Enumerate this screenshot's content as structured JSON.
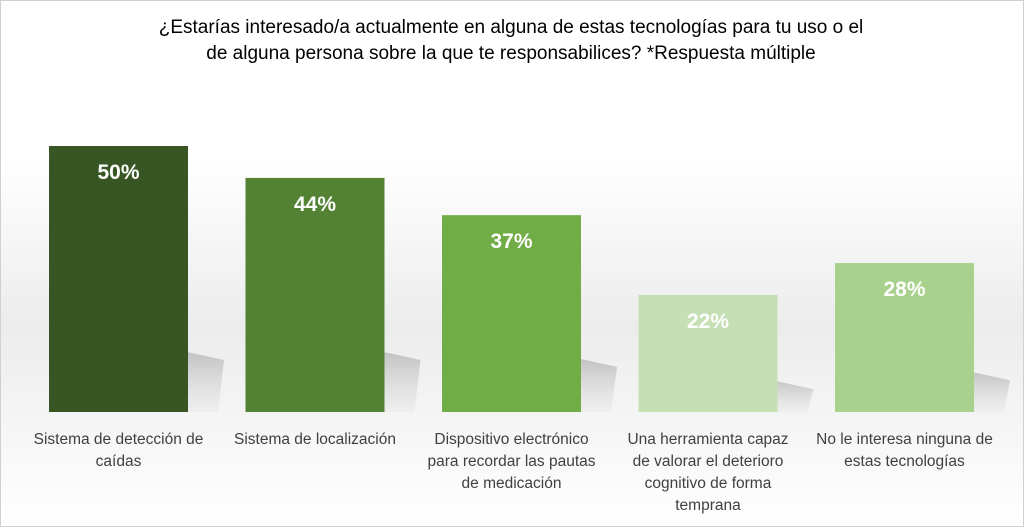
{
  "chart_data": {
    "type": "bar",
    "title_lines": [
      "¿Estarías interesado/a actualmente en alguna de estas tecnologías para tu uso o el",
      "de alguna persona sobre la que te responsabilices? *Respuesta múltiple"
    ],
    "categories": [
      [
        "Sistema de detección de",
        "caídas"
      ],
      [
        "Sistema de localización"
      ],
      [
        "Dispositivo electrónico",
        "para recordar las pautas",
        "de medicación"
      ],
      [
        "Una herramienta capaz",
        "de valorar el deterioro",
        "cognitivo de forma",
        "temprana"
      ],
      [
        "No le interesa ninguna de",
        "estas tecnologías"
      ]
    ],
    "values": [
      50,
      44,
      37,
      22,
      28
    ],
    "data_labels": [
      "50%",
      "44%",
      "37%",
      "22%",
      "28%"
    ],
    "unit": "%",
    "ylim": [
      0,
      50
    ],
    "grid": false,
    "legend": "none",
    "colors": [
      "#375623",
      "#548235",
      "#70ad47",
      "#c5e0b4",
      "#a9d18e"
    ]
  }
}
